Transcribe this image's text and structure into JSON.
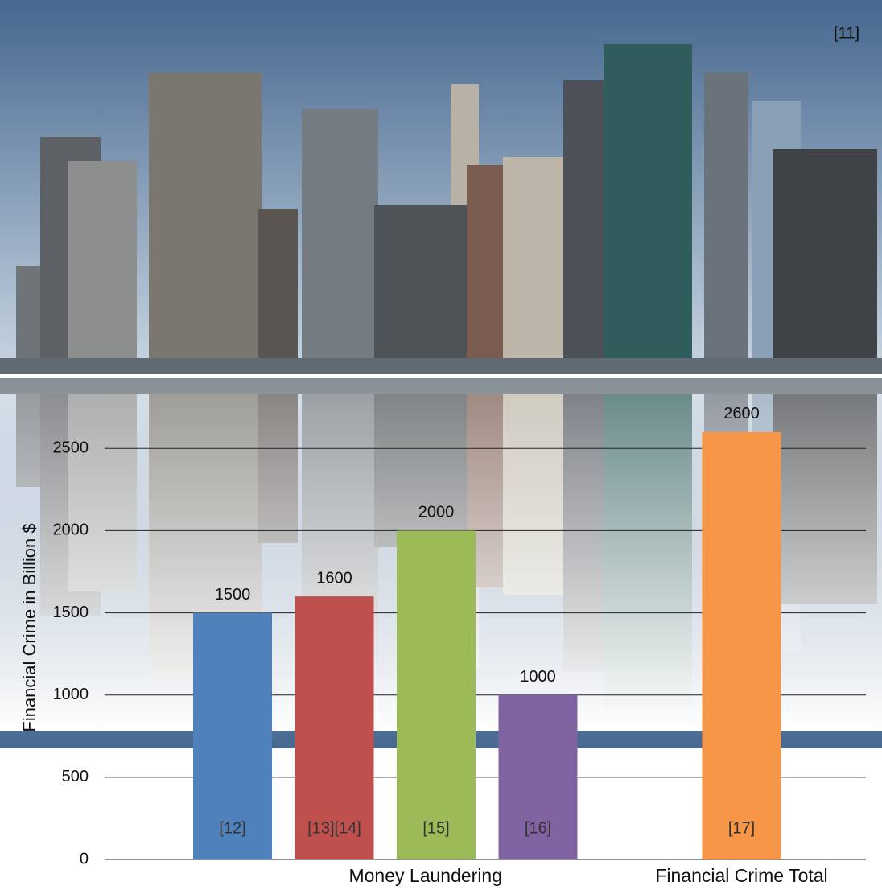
{
  "image_note": "[11]",
  "chart_data": {
    "type": "bar",
    "y_label": "Financial Crime in Billion $",
    "groups": [
      {
        "label": "Money Laundering",
        "values": [
          1500,
          1600,
          2000,
          1000
        ],
        "colors": [
          "#4f81bd",
          "#c0504d",
          "#9bbb59",
          "#8064a2"
        ],
        "notes": [
          "[12]",
          "[13][14]",
          "[15]",
          "[16]"
        ]
      },
      {
        "label": "Financial Crime Total",
        "values": [
          2600
        ],
        "colors": [
          "#f79646"
        ],
        "notes": [
          "[17]"
        ]
      }
    ],
    "ylim": [
      0,
      2800
    ],
    "yticks": [
      0,
      500,
      1000,
      1500,
      2000,
      2500
    ],
    "grid": true
  }
}
